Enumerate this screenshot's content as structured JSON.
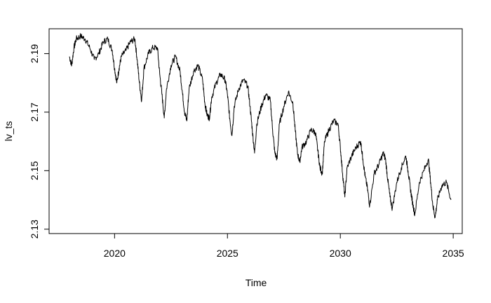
{
  "chart_data": {
    "type": "line",
    "title": "",
    "xlabel": "Time",
    "ylabel": "lv_ts",
    "xlim": [
      2017.1,
      2035.4
    ],
    "ylim": [
      2.1285,
      2.1985
    ],
    "x_ticks": [
      2020,
      2025,
      2030,
      2035
    ],
    "x_tick_labels": [
      "2020",
      "2025",
      "2030",
      "2035"
    ],
    "y_ticks": [
      2.13,
      2.15,
      2.17,
      2.19
    ],
    "y_tick_labels": [
      "2.13",
      "2.15",
      "2.17",
      "2.19"
    ],
    "grid": false,
    "legend": "none",
    "line_color": "#000000",
    "series": [
      {
        "x": [
          2018.0,
          2018.1,
          2018.2,
          2018.3,
          2018.5,
          2018.7,
          2018.9,
          2019.1,
          2019.3,
          2019.5,
          2019.7,
          2019.9,
          2020.0,
          2020.1,
          2020.2,
          2020.3,
          2020.5,
          2020.7,
          2020.9,
          2021.0,
          2021.1,
          2021.2,
          2021.3,
          2021.5,
          2021.7,
          2021.9,
          2022.0,
          2022.1,
          2022.2,
          2022.3,
          2022.5,
          2022.7,
          2022.9,
          2023.0,
          2023.1,
          2023.2,
          2023.3,
          2023.5,
          2023.7,
          2023.9,
          2024.0,
          2024.1,
          2024.2,
          2024.3,
          2024.5,
          2024.7,
          2024.9,
          2025.0,
          2025.1,
          2025.2,
          2025.3,
          2025.5,
          2025.7,
          2025.9,
          2026.0,
          2026.1,
          2026.2,
          2026.3,
          2026.5,
          2026.7,
          2026.9,
          2027.0,
          2027.1,
          2027.2,
          2027.3,
          2027.5,
          2027.7,
          2027.9,
          2028.0,
          2028.1,
          2028.2,
          2028.3,
          2028.5,
          2028.7,
          2028.9,
          2029.0,
          2029.1,
          2029.2,
          2029.3,
          2029.5,
          2029.7,
          2029.9,
          2030.0,
          2030.1,
          2030.2,
          2030.3,
          2030.5,
          2030.7,
          2030.9,
          2031.0,
          2031.1,
          2031.2,
          2031.3,
          2031.5,
          2031.7,
          2031.9,
          2032.0,
          2032.1,
          2032.2,
          2032.3,
          2032.5,
          2032.7,
          2032.9,
          2033.0,
          2033.1,
          2033.2,
          2033.3,
          2033.5,
          2033.7,
          2033.9,
          2034.0,
          2034.1,
          2034.2,
          2034.3,
          2034.5,
          2034.7,
          2034.9
        ],
        "y": [
          2.189,
          2.186,
          2.192,
          2.195,
          2.196,
          2.195,
          2.192,
          2.188,
          2.19,
          2.194,
          2.195,
          2.191,
          2.185,
          2.18,
          2.185,
          2.189,
          2.191,
          2.194,
          2.195,
          2.188,
          2.18,
          2.174,
          2.185,
          2.19,
          2.192,
          2.192,
          2.183,
          2.176,
          2.168,
          2.178,
          2.186,
          2.189,
          2.184,
          2.177,
          2.17,
          2.167,
          2.178,
          2.184,
          2.186,
          2.181,
          2.173,
          2.169,
          2.168,
          2.175,
          2.18,
          2.183,
          2.181,
          2.176,
          2.168,
          2.162,
          2.172,
          2.178,
          2.181,
          2.179,
          2.172,
          2.164,
          2.156,
          2.166,
          2.172,
          2.176,
          2.174,
          2.164,
          2.156,
          2.154,
          2.166,
          2.172,
          2.177,
          2.173,
          2.164,
          2.156,
          2.153,
          2.158,
          2.16,
          2.164,
          2.163,
          2.157,
          2.151,
          2.149,
          2.16,
          2.164,
          2.167,
          2.166,
          2.158,
          2.149,
          2.141,
          2.151,
          2.155,
          2.158,
          2.16,
          2.154,
          2.148,
          2.144,
          2.138,
          2.149,
          2.152,
          2.156,
          2.154,
          2.147,
          2.141,
          2.137,
          2.146,
          2.151,
          2.155,
          2.15,
          2.144,
          2.139,
          2.135,
          2.146,
          2.15,
          2.154,
          2.146,
          2.138,
          2.134,
          2.14,
          2.145,
          2.146,
          2.14
        ]
      }
    ]
  }
}
